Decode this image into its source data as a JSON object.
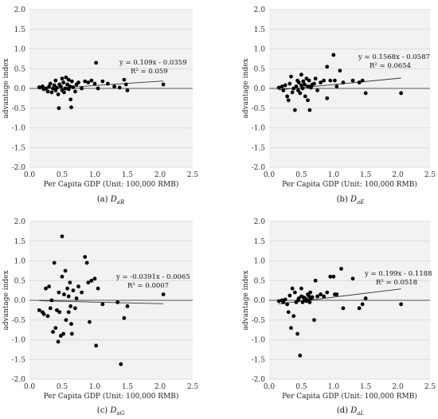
{
  "figure": {
    "panels": [
      {
        "id": "a",
        "caption_prefix": "(a) ",
        "caption_symbol": "D",
        "caption_subscript": "aR"
      },
      {
        "id": "b",
        "caption_prefix": "(b) ",
        "caption_symbol": "D",
        "caption_subscript": "aE"
      },
      {
        "id": "c",
        "caption_prefix": "(c) ",
        "caption_symbol": "D",
        "caption_subscript": "aG"
      },
      {
        "id": "d",
        "caption_prefix": "(d) ",
        "caption_symbol": "D",
        "caption_subscript": "aL"
      }
    ]
  },
  "chart_data": [
    {
      "type": "scatter",
      "title": "",
      "xlabel": "Per Capita GDP (Unit: 100,000 RMB)",
      "ylabel": "advantage index",
      "xlim": [
        0,
        2.5
      ],
      "ylim": [
        -2,
        2
      ],
      "xticks": [
        "0.0",
        "0.5",
        "1.0",
        "1.5",
        "2.0",
        "2.5"
      ],
      "yticks": [
        "2.0",
        "1.5",
        "1.0",
        "0.5",
        "0.0",
        "-0.5",
        "-1.0",
        "-1.5",
        "-2.0"
      ],
      "grid": true,
      "trendline": {
        "slope": 0.109,
        "intercept": -0.0359,
        "x_range": [
          0.15,
          2.05
        ]
      },
      "equation": "y = 0.109x - 0.0359",
      "r2": "R² = 0.059",
      "points": [
        [
          0.15,
          0.03
        ],
        [
          0.2,
          0.05
        ],
        [
          0.22,
          -0.02
        ],
        [
          0.25,
          0.0
        ],
        [
          0.28,
          -0.08
        ],
        [
          0.3,
          0.05
        ],
        [
          0.32,
          0.12
        ],
        [
          0.34,
          -0.1
        ],
        [
          0.36,
          0.0
        ],
        [
          0.38,
          0.08
        ],
        [
          0.4,
          -0.05
        ],
        [
          0.4,
          0.2
        ],
        [
          0.42,
          0.02
        ],
        [
          0.44,
          -0.15
        ],
        [
          0.45,
          -0.5
        ],
        [
          0.46,
          0.1
        ],
        [
          0.48,
          0.05
        ],
        [
          0.5,
          -0.05
        ],
        [
          0.5,
          0.25
        ],
        [
          0.52,
          0.15
        ],
        [
          0.53,
          -0.1
        ],
        [
          0.55,
          0.0
        ],
        [
          0.56,
          0.28
        ],
        [
          0.58,
          0.1
        ],
        [
          0.6,
          -0.02
        ],
        [
          0.6,
          0.22
        ],
        [
          0.62,
          0.05
        ],
        [
          0.63,
          -0.28
        ],
        [
          0.64,
          -0.48
        ],
        [
          0.65,
          0.18
        ],
        [
          0.67,
          0.03
        ],
        [
          0.7,
          -0.08
        ],
        [
          0.72,
          0.1
        ],
        [
          0.75,
          0.15
        ],
        [
          0.8,
          0.0
        ],
        [
          0.85,
          0.18
        ],
        [
          0.9,
          0.15
        ],
        [
          0.95,
          0.2
        ],
        [
          1.0,
          0.12
        ],
        [
          1.02,
          0.65
        ],
        [
          1.05,
          0.0
        ],
        [
          1.12,
          0.18
        ],
        [
          1.2,
          0.12
        ],
        [
          1.3,
          0.05
        ],
        [
          1.38,
          0.02
        ],
        [
          1.45,
          0.22
        ],
        [
          1.48,
          0.1
        ],
        [
          1.5,
          -0.05
        ],
        [
          2.05,
          0.1
        ]
      ]
    },
    {
      "type": "scatter",
      "title": "",
      "xlabel": "Per Capita GDP (Unit: 100,000 RMB)",
      "ylabel": "advantage index",
      "xlim": [
        0,
        2.5
      ],
      "ylim": [
        -2,
        2
      ],
      "xticks": [
        "0.0",
        "0.5",
        "1.0",
        "1.5",
        "2.0",
        "2.5"
      ],
      "yticks": [
        "2.0",
        "1.5",
        "1.0",
        "0.5",
        "0.0",
        "-0.5",
        "-1.0",
        "-1.5",
        "-2.0"
      ],
      "grid": true,
      "trendline": {
        "slope": 0.1568,
        "intercept": -0.0587,
        "x_range": [
          0.15,
          2.05
        ]
      },
      "equation": "y = 0.1568x - 0.0587",
      "r2": "R² = 0.0654",
      "points": [
        [
          0.15,
          0.02
        ],
        [
          0.2,
          0.05
        ],
        [
          0.22,
          -0.05
        ],
        [
          0.25,
          0.08
        ],
        [
          0.28,
          -0.2
        ],
        [
          0.3,
          -0.3
        ],
        [
          0.32,
          0.12
        ],
        [
          0.34,
          0.3
        ],
        [
          0.36,
          -0.1
        ],
        [
          0.38,
          0.0
        ],
        [
          0.4,
          -0.55
        ],
        [
          0.42,
          0.05
        ],
        [
          0.44,
          0.2
        ],
        [
          0.45,
          -0.05
        ],
        [
          0.46,
          0.15
        ],
        [
          0.48,
          -0.12
        ],
        [
          0.5,
          0.35
        ],
        [
          0.5,
          0.08
        ],
        [
          0.52,
          0.0
        ],
        [
          0.53,
          0.18
        ],
        [
          0.55,
          0.1
        ],
        [
          0.56,
          -0.2
        ],
        [
          0.58,
          0.25
        ],
        [
          0.6,
          0.05
        ],
        [
          0.6,
          -0.3
        ],
        [
          0.62,
          0.2
        ],
        [
          0.63,
          -0.55
        ],
        [
          0.64,
          0.05
        ],
        [
          0.65,
          0.02
        ],
        [
          0.67,
          0.1
        ],
        [
          0.7,
          0.12
        ],
        [
          0.72,
          0.25
        ],
        [
          0.75,
          -0.05
        ],
        [
          0.8,
          0.15
        ],
        [
          0.85,
          0.2
        ],
        [
          0.9,
          0.55
        ],
        [
          0.9,
          -0.25
        ],
        [
          0.95,
          0.2
        ],
        [
          1.0,
          0.85
        ],
        [
          1.02,
          0.2
        ],
        [
          1.05,
          0.05
        ],
        [
          1.1,
          0.45
        ],
        [
          1.15,
          0.15
        ],
        [
          1.3,
          0.2
        ],
        [
          1.4,
          0.15
        ],
        [
          1.45,
          0.2
        ],
        [
          1.5,
          -0.12
        ],
        [
          2.05,
          -0.12
        ]
      ]
    },
    {
      "type": "scatter",
      "title": "",
      "xlabel": "Per Capita GDP (Unit: 100,000 RMB)",
      "ylabel": "advantage index",
      "xlim": [
        0,
        2.5
      ],
      "ylim": [
        -2,
        2
      ],
      "xticks": [
        "0.0",
        "0.5",
        "1.0",
        "1.5",
        "2.0",
        "2.5"
      ],
      "yticks": [
        "2.0",
        "1.5",
        "1.0",
        "0.5",
        "0.0",
        "-0.5",
        "-1.0",
        "-1.5",
        "-2.0"
      ],
      "grid": true,
      "trendline": {
        "slope": -0.0391,
        "intercept": -0.0065,
        "x_range": [
          0.15,
          2.05
        ]
      },
      "equation": "y = -0.0391x - 0.0065",
      "r2": "R² = 0.0007",
      "points": [
        [
          0.15,
          -0.25
        ],
        [
          0.2,
          -0.3
        ],
        [
          0.22,
          -0.35
        ],
        [
          0.25,
          0.3
        ],
        [
          0.28,
          -0.4
        ],
        [
          0.3,
          0.35
        ],
        [
          0.32,
          -0.2
        ],
        [
          0.34,
          0.0
        ],
        [
          0.36,
          -0.8
        ],
        [
          0.38,
          0.95
        ],
        [
          0.4,
          -0.7
        ],
        [
          0.42,
          -0.25
        ],
        [
          0.44,
          -1.05
        ],
        [
          0.45,
          0.2
        ],
        [
          0.46,
          -0.3
        ],
        [
          0.48,
          -0.9
        ],
        [
          0.5,
          1.62
        ],
        [
          0.5,
          0.6
        ],
        [
          0.52,
          -0.85
        ],
        [
          0.53,
          0.15
        ],
        [
          0.55,
          0.75
        ],
        [
          0.56,
          -0.5
        ],
        [
          0.58,
          0.3
        ],
        [
          0.6,
          0.1
        ],
        [
          0.6,
          -0.3
        ],
        [
          0.62,
          0.45
        ],
        [
          0.63,
          -0.15
        ],
        [
          0.64,
          -0.6
        ],
        [
          0.65,
          -0.85
        ],
        [
          0.67,
          0.25
        ],
        [
          0.7,
          -0.2
        ],
        [
          0.72,
          0.05
        ],
        [
          0.75,
          0.35
        ],
        [
          0.8,
          0.2
        ],
        [
          0.85,
          1.1
        ],
        [
          0.88,
          0.95
        ],
        [
          0.9,
          0.45
        ],
        [
          0.92,
          -0.55
        ],
        [
          0.95,
          0.5
        ],
        [
          1.0,
          0.55
        ],
        [
          1.02,
          -1.15
        ],
        [
          1.05,
          0.3
        ],
        [
          1.12,
          -0.1
        ],
        [
          1.35,
          -0.05
        ],
        [
          1.4,
          -1.62
        ],
        [
          1.45,
          -0.45
        ],
        [
          1.5,
          -0.15
        ],
        [
          2.05,
          0.15
        ]
      ]
    },
    {
      "type": "scatter",
      "title": "",
      "xlabel": "Per Capita GDP (Unit: 100,000 RMB)",
      "ylabel": "advantage index",
      "xlim": [
        0,
        2.5
      ],
      "ylim": [
        -2,
        2
      ],
      "xticks": [
        "0.0",
        "0.5",
        "1.0",
        "1.5",
        "2.0",
        "2.5"
      ],
      "yticks": [
        "2.0",
        "1.5",
        "1.0",
        "0.5",
        "0.0",
        "-0.5",
        "-1.0",
        "-1.5",
        "-2.0"
      ],
      "grid": true,
      "trendline": {
        "slope": 0.199,
        "intercept": -0.1188,
        "x_range": [
          0.15,
          2.05
        ]
      },
      "equation": "y = 0.199x - 0.1188",
      "r2": "R² = 0.0518",
      "points": [
        [
          0.15,
          -0.02
        ],
        [
          0.2,
          0.0
        ],
        [
          0.22,
          -0.05
        ],
        [
          0.25,
          0.02
        ],
        [
          0.28,
          -0.1
        ],
        [
          0.3,
          -0.3
        ],
        [
          0.32,
          0.12
        ],
        [
          0.34,
          -0.7
        ],
        [
          0.36,
          0.3
        ],
        [
          0.38,
          -0.4
        ],
        [
          0.4,
          0.2
        ],
        [
          0.42,
          -0.05
        ],
        [
          0.44,
          -0.85
        ],
        [
          0.45,
          0.0
        ],
        [
          0.46,
          0.05
        ],
        [
          0.48,
          -1.4
        ],
        [
          0.5,
          0.3
        ],
        [
          0.5,
          0.1
        ],
        [
          0.52,
          -0.05
        ],
        [
          0.53,
          0.08
        ],
        [
          0.55,
          0.0
        ],
        [
          0.56,
          0.05
        ],
        [
          0.58,
          -0.02
        ],
        [
          0.6,
          0.15
        ],
        [
          0.6,
          0.0
        ],
        [
          0.62,
          0.1
        ],
        [
          0.63,
          -0.05
        ],
        [
          0.64,
          0.2
        ],
        [
          0.65,
          0.05
        ],
        [
          0.67,
          0.08
        ],
        [
          0.7,
          -0.5
        ],
        [
          0.72,
          0.5
        ],
        [
          0.75,
          0.1
        ],
        [
          0.8,
          0.15
        ],
        [
          0.85,
          0.1
        ],
        [
          0.9,
          0.2
        ],
        [
          0.95,
          0.6
        ],
        [
          1.0,
          0.6
        ],
        [
          1.02,
          0.15
        ],
        [
          1.05,
          0.15
        ],
        [
          1.12,
          0.8
        ],
        [
          1.15,
          -0.2
        ],
        [
          1.3,
          0.55
        ],
        [
          1.4,
          -0.2
        ],
        [
          1.45,
          -0.1
        ],
        [
          1.5,
          0.05
        ],
        [
          2.05,
          -0.1
        ]
      ]
    }
  ]
}
